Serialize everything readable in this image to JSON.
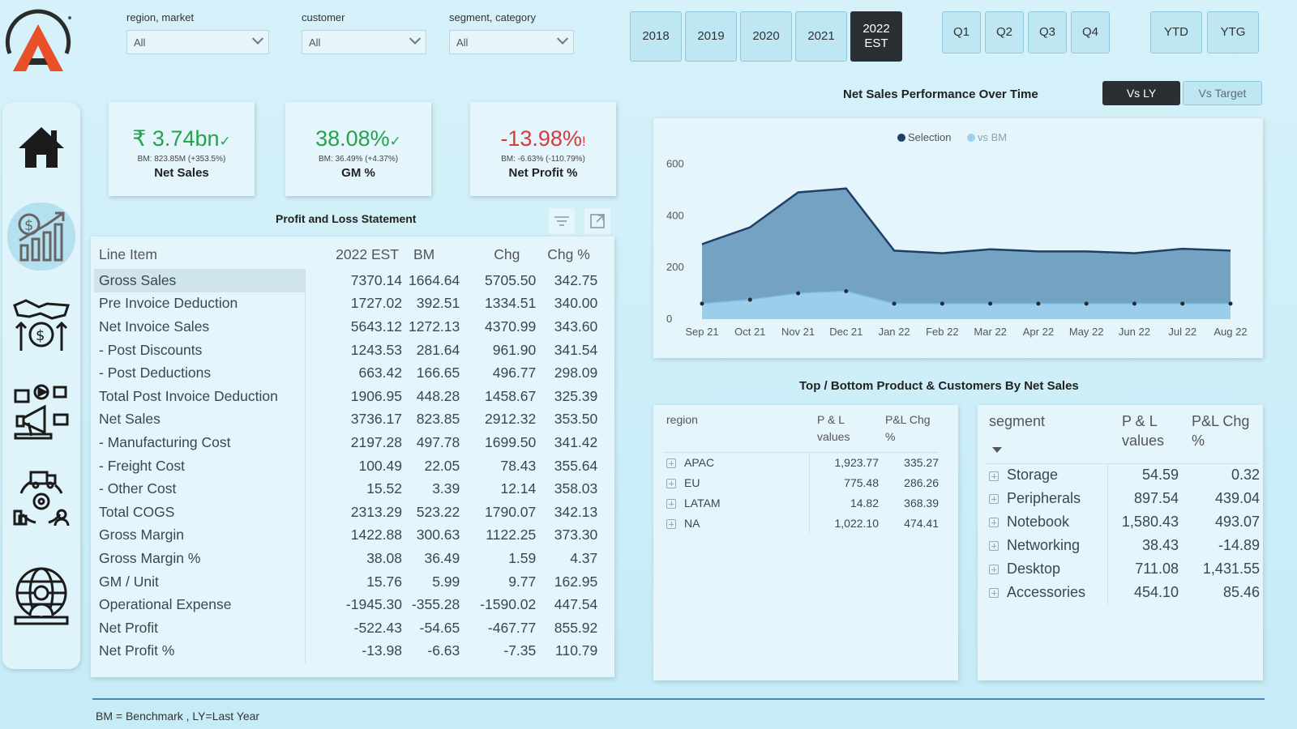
{
  "slicers": [
    {
      "label": "region, market",
      "value": "All"
    },
    {
      "label": "customer",
      "value": "All"
    },
    {
      "label": "segment, category",
      "value": "All"
    }
  ],
  "years": [
    "2018",
    "2019",
    "2020",
    "2021",
    "2022 EST"
  ],
  "selected_year": "2022 EST",
  "quarters": [
    "Q1",
    "Q2",
    "Q3",
    "Q4"
  ],
  "ytd": "YTD",
  "ytg": "YTG",
  "compare": {
    "vs_ly": "Vs LY",
    "vs_target": "Vs Target",
    "selected": "Vs LY"
  },
  "kpis": [
    {
      "value": "₹ 3.74bn",
      "mark": "✓",
      "sub": "BM: 823.85M (+353.5%)",
      "name": "Net Sales",
      "color": "green"
    },
    {
      "value": "38.08%",
      "mark": "✓",
      "sub": "BM: 36.49% (+4.37%)",
      "name": "GM %",
      "color": "green"
    },
    {
      "value": "-13.98%",
      "mark": "!",
      "sub": "BM: -6.63% (-110.79%)",
      "name": "Net Profit %",
      "color": "red"
    }
  ],
  "pl": {
    "title": "Profit and Loss Statement",
    "headers": [
      "Line Item",
      "2022 EST",
      "BM",
      "Chg",
      "Chg %"
    ],
    "rows": [
      [
        "Gross Sales",
        "7370.14",
        "1664.64",
        "5705.50",
        "342.75"
      ],
      [
        "Pre Invoice Deduction",
        "1727.02",
        "392.51",
        "1334.51",
        "340.00"
      ],
      [
        "Net Invoice Sales",
        "5643.12",
        "1272.13",
        "4370.99",
        "343.60"
      ],
      [
        "- Post Discounts",
        "1243.53",
        "281.64",
        "961.90",
        "341.54"
      ],
      [
        "- Post Deductions",
        "663.42",
        "166.65",
        "496.77",
        "298.09"
      ],
      [
        "Total Post Invoice Deduction",
        "1906.95",
        "448.28",
        "1458.67",
        "325.39"
      ],
      [
        "Net Sales",
        "3736.17",
        "823.85",
        "2912.32",
        "353.50"
      ],
      [
        "- Manufacturing Cost",
        "2197.28",
        "497.78",
        "1699.50",
        "341.42"
      ],
      [
        "- Freight Cost",
        "100.49",
        "22.05",
        "78.43",
        "355.64"
      ],
      [
        "- Other Cost",
        "15.52",
        "3.39",
        "12.14",
        "358.03"
      ],
      [
        "Total COGS",
        "2313.29",
        "523.22",
        "1790.07",
        "342.13"
      ],
      [
        "Gross Margin",
        "1422.88",
        "300.63",
        "1122.25",
        "373.30"
      ],
      [
        "Gross Margin %",
        "38.08",
        "36.49",
        "1.59",
        "4.37"
      ],
      [
        "GM / Unit",
        "15.76",
        "5.99",
        "9.77",
        "162.95"
      ],
      [
        "Operational Expense",
        "-1945.30",
        "-355.28",
        "-1590.02",
        "447.54"
      ],
      [
        "Net Profit",
        "-522.43",
        "-54.65",
        "-467.77",
        "855.92"
      ],
      [
        "Net Profit %",
        "-13.98",
        "-6.63",
        "-7.35",
        "110.79"
      ]
    ]
  },
  "chart_title": "Net Sales Performance Over Time",
  "chart_data": {
    "type": "area",
    "x": [
      "Sep 21",
      "Oct 21",
      "Nov 21",
      "Dec 21",
      "Jan 22",
      "Feb 22",
      "Mar 22",
      "Apr 22",
      "May 22",
      "Jun 22",
      "Jul 22",
      "Aug 22"
    ],
    "series": [
      {
        "name": "Selection",
        "values": [
          290,
          355,
          490,
          505,
          265,
          255,
          270,
          262,
          262,
          255,
          272,
          265
        ],
        "color": "#1f3f66"
      },
      {
        "name": "vs BM",
        "values": [
          60,
          75,
          100,
          108,
          60,
          60,
          60,
          60,
          60,
          60,
          60,
          60
        ],
        "color": "#9dd1ec"
      }
    ],
    "yticks": [
      0,
      200,
      400,
      600
    ],
    "ylim": [
      0,
      620
    ],
    "legend": "top-center",
    "grid": false
  },
  "tb_title": "Top / Bottom Product & Customers By Net Sales",
  "region_table": {
    "headers": [
      "region",
      "P & L values",
      "P&L Chg %"
    ],
    "rows": [
      [
        "APAC",
        "1,923.77",
        "335.27"
      ],
      [
        "EU",
        "775.48",
        "286.26"
      ],
      [
        "LATAM",
        "14.82",
        "368.39"
      ],
      [
        "NA",
        "1,022.10",
        "474.41"
      ]
    ]
  },
  "segment_table": {
    "headers": [
      "segment",
      "P & L values",
      "P&L Chg %"
    ],
    "rows": [
      [
        "Storage",
        "54.59",
        "0.32"
      ],
      [
        "Peripherals",
        "897.54",
        "439.04"
      ],
      [
        "Notebook",
        "1,580.43",
        "493.07"
      ],
      [
        "Networking",
        "38.43",
        "-14.89"
      ],
      [
        "Desktop",
        "711.08",
        "1,431.55"
      ],
      [
        "Accessories",
        "454.10",
        "85.46"
      ]
    ]
  },
  "footer": "BM = Benchmark ,  LY=Last Year",
  "icons": [
    "logo-icon",
    "home-icon",
    "finance-chart-icon",
    "handshake-money-icon",
    "marketing-icon",
    "supply-chain-icon",
    "global-support-icon",
    "filter-icon",
    "expand-icon"
  ]
}
